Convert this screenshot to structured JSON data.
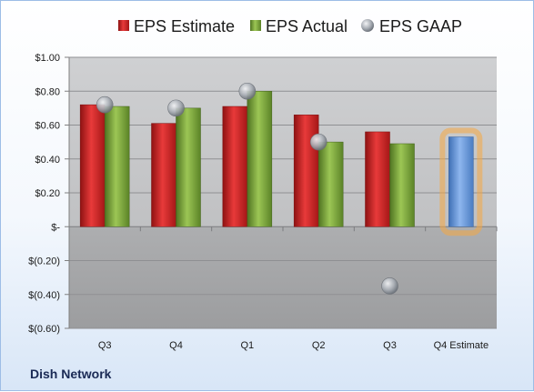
{
  "footer": {
    "company": "Dish Network"
  },
  "chart_data": {
    "type": "bar",
    "title": "",
    "xlabel": "",
    "ylabel": "",
    "ylim": [
      -0.6,
      1.0
    ],
    "y_ticks": [
      1.0,
      0.8,
      0.6,
      0.4,
      0.2,
      0,
      -0.2,
      -0.4,
      -0.6
    ],
    "y_tick_labels": [
      "$1.00",
      "$0.80",
      "$0.60",
      "$0.40",
      "$0.20",
      "$-",
      "$(0.20)",
      "$(0.40)",
      "$(0.60)"
    ],
    "categories": [
      "Q3",
      "Q4",
      "Q1",
      "Q2",
      "Q3",
      "Q4 Estimate"
    ],
    "legend_position": "top",
    "grid": true,
    "series": [
      {
        "name": "EPS Estimate",
        "kind": "bar",
        "color": "#cc1f1f",
        "values": [
          0.72,
          0.61,
          0.71,
          0.66,
          0.56,
          null
        ]
      },
      {
        "name": "EPS Actual",
        "kind": "bar",
        "color": "#79a637",
        "values": [
          0.71,
          0.7,
          0.8,
          0.5,
          0.49,
          null
        ]
      },
      {
        "name": "EPS GAAP",
        "kind": "marker",
        "color": "#aab0b8",
        "values": [
          0.72,
          0.7,
          0.8,
          0.5,
          -0.35,
          null
        ]
      },
      {
        "name": "",
        "kind": "estimate-bar",
        "color": "#5b8fd6",
        "glow": "#f5a742",
        "values": [
          null,
          null,
          null,
          null,
          null,
          0.53
        ]
      }
    ]
  }
}
